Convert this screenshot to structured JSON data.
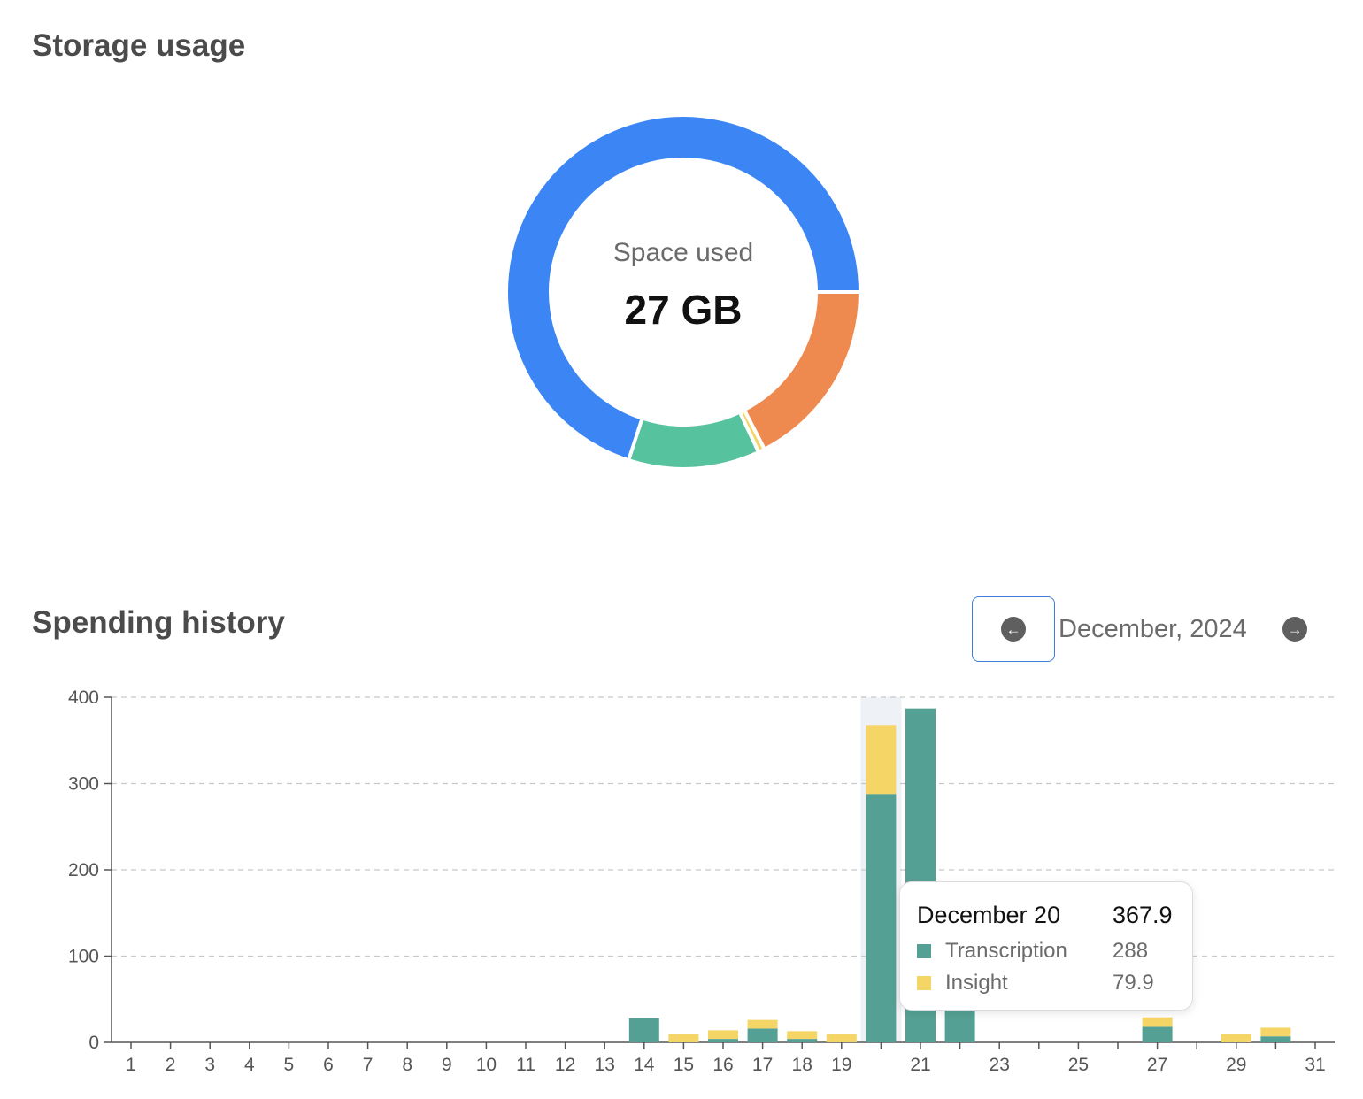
{
  "storage": {
    "title": "Storage usage",
    "center_label": "Space used",
    "center_value": "27 GB"
  },
  "spending": {
    "title": "Spending history",
    "month_label": "December, 2024",
    "prev_icon": "arrow-left-circle-icon",
    "next_icon": "arrow-right-circle-icon"
  },
  "tooltip": {
    "date": "December 20",
    "total": "367.9",
    "rows": [
      {
        "name": "Transcription",
        "value": "288",
        "color": "#55a094"
      },
      {
        "name": "Insight",
        "value": "79.9",
        "color": "#f5d565"
      }
    ]
  },
  "chart_data": [
    {
      "type": "pie",
      "variant": "donut",
      "title": "",
      "slices": [
        {
          "value": 0.7,
          "color": "#3b86f4"
        },
        {
          "value": 0.12,
          "color": "#56c39e"
        },
        {
          "value": 0.006,
          "color": "#f5d565"
        },
        {
          "value": 0.174,
          "color": "#ee8a4f"
        }
      ]
    },
    {
      "type": "bar",
      "stacked": true,
      "title": "",
      "categories": [
        1,
        2,
        3,
        4,
        5,
        6,
        7,
        8,
        9,
        10,
        11,
        12,
        13,
        14,
        15,
        16,
        17,
        18,
        19,
        20,
        21,
        22,
        23,
        24,
        25,
        26,
        27,
        28,
        29,
        30,
        31
      ],
      "x_tick_labels": [
        "1",
        "2",
        "3",
        "4",
        "5",
        "6",
        "7",
        "8",
        "9",
        "10",
        "11",
        "12",
        "13",
        "14",
        "15",
        "16",
        "17",
        "18",
        "19",
        "",
        "21",
        "",
        "23",
        "",
        "25",
        "",
        "27",
        "",
        "29",
        "",
        "31"
      ],
      "series": [
        {
          "name": "Transcription",
          "color": "#55a094",
          "values": [
            0,
            0,
            0,
            0,
            0,
            0,
            0,
            0,
            0,
            0,
            0,
            0,
            0,
            28,
            0,
            4,
            16,
            4,
            0,
            288,
            387,
            130,
            0,
            0,
            0,
            0,
            18,
            0,
            0,
            7,
            0
          ]
        },
        {
          "name": "Insight",
          "color": "#f5d565",
          "values": [
            0,
            0,
            0,
            0,
            0,
            0,
            0,
            0,
            0,
            0,
            0,
            0,
            0,
            0,
            10,
            10,
            10,
            9,
            10,
            79.9,
            0,
            0,
            0,
            0,
            0,
            0,
            11,
            0,
            10,
            10,
            0
          ]
        }
      ],
      "ylim": [
        0,
        400
      ],
      "yticks": [
        0,
        100,
        200,
        300,
        400
      ],
      "grid": true,
      "highlighted_category": 20
    }
  ]
}
